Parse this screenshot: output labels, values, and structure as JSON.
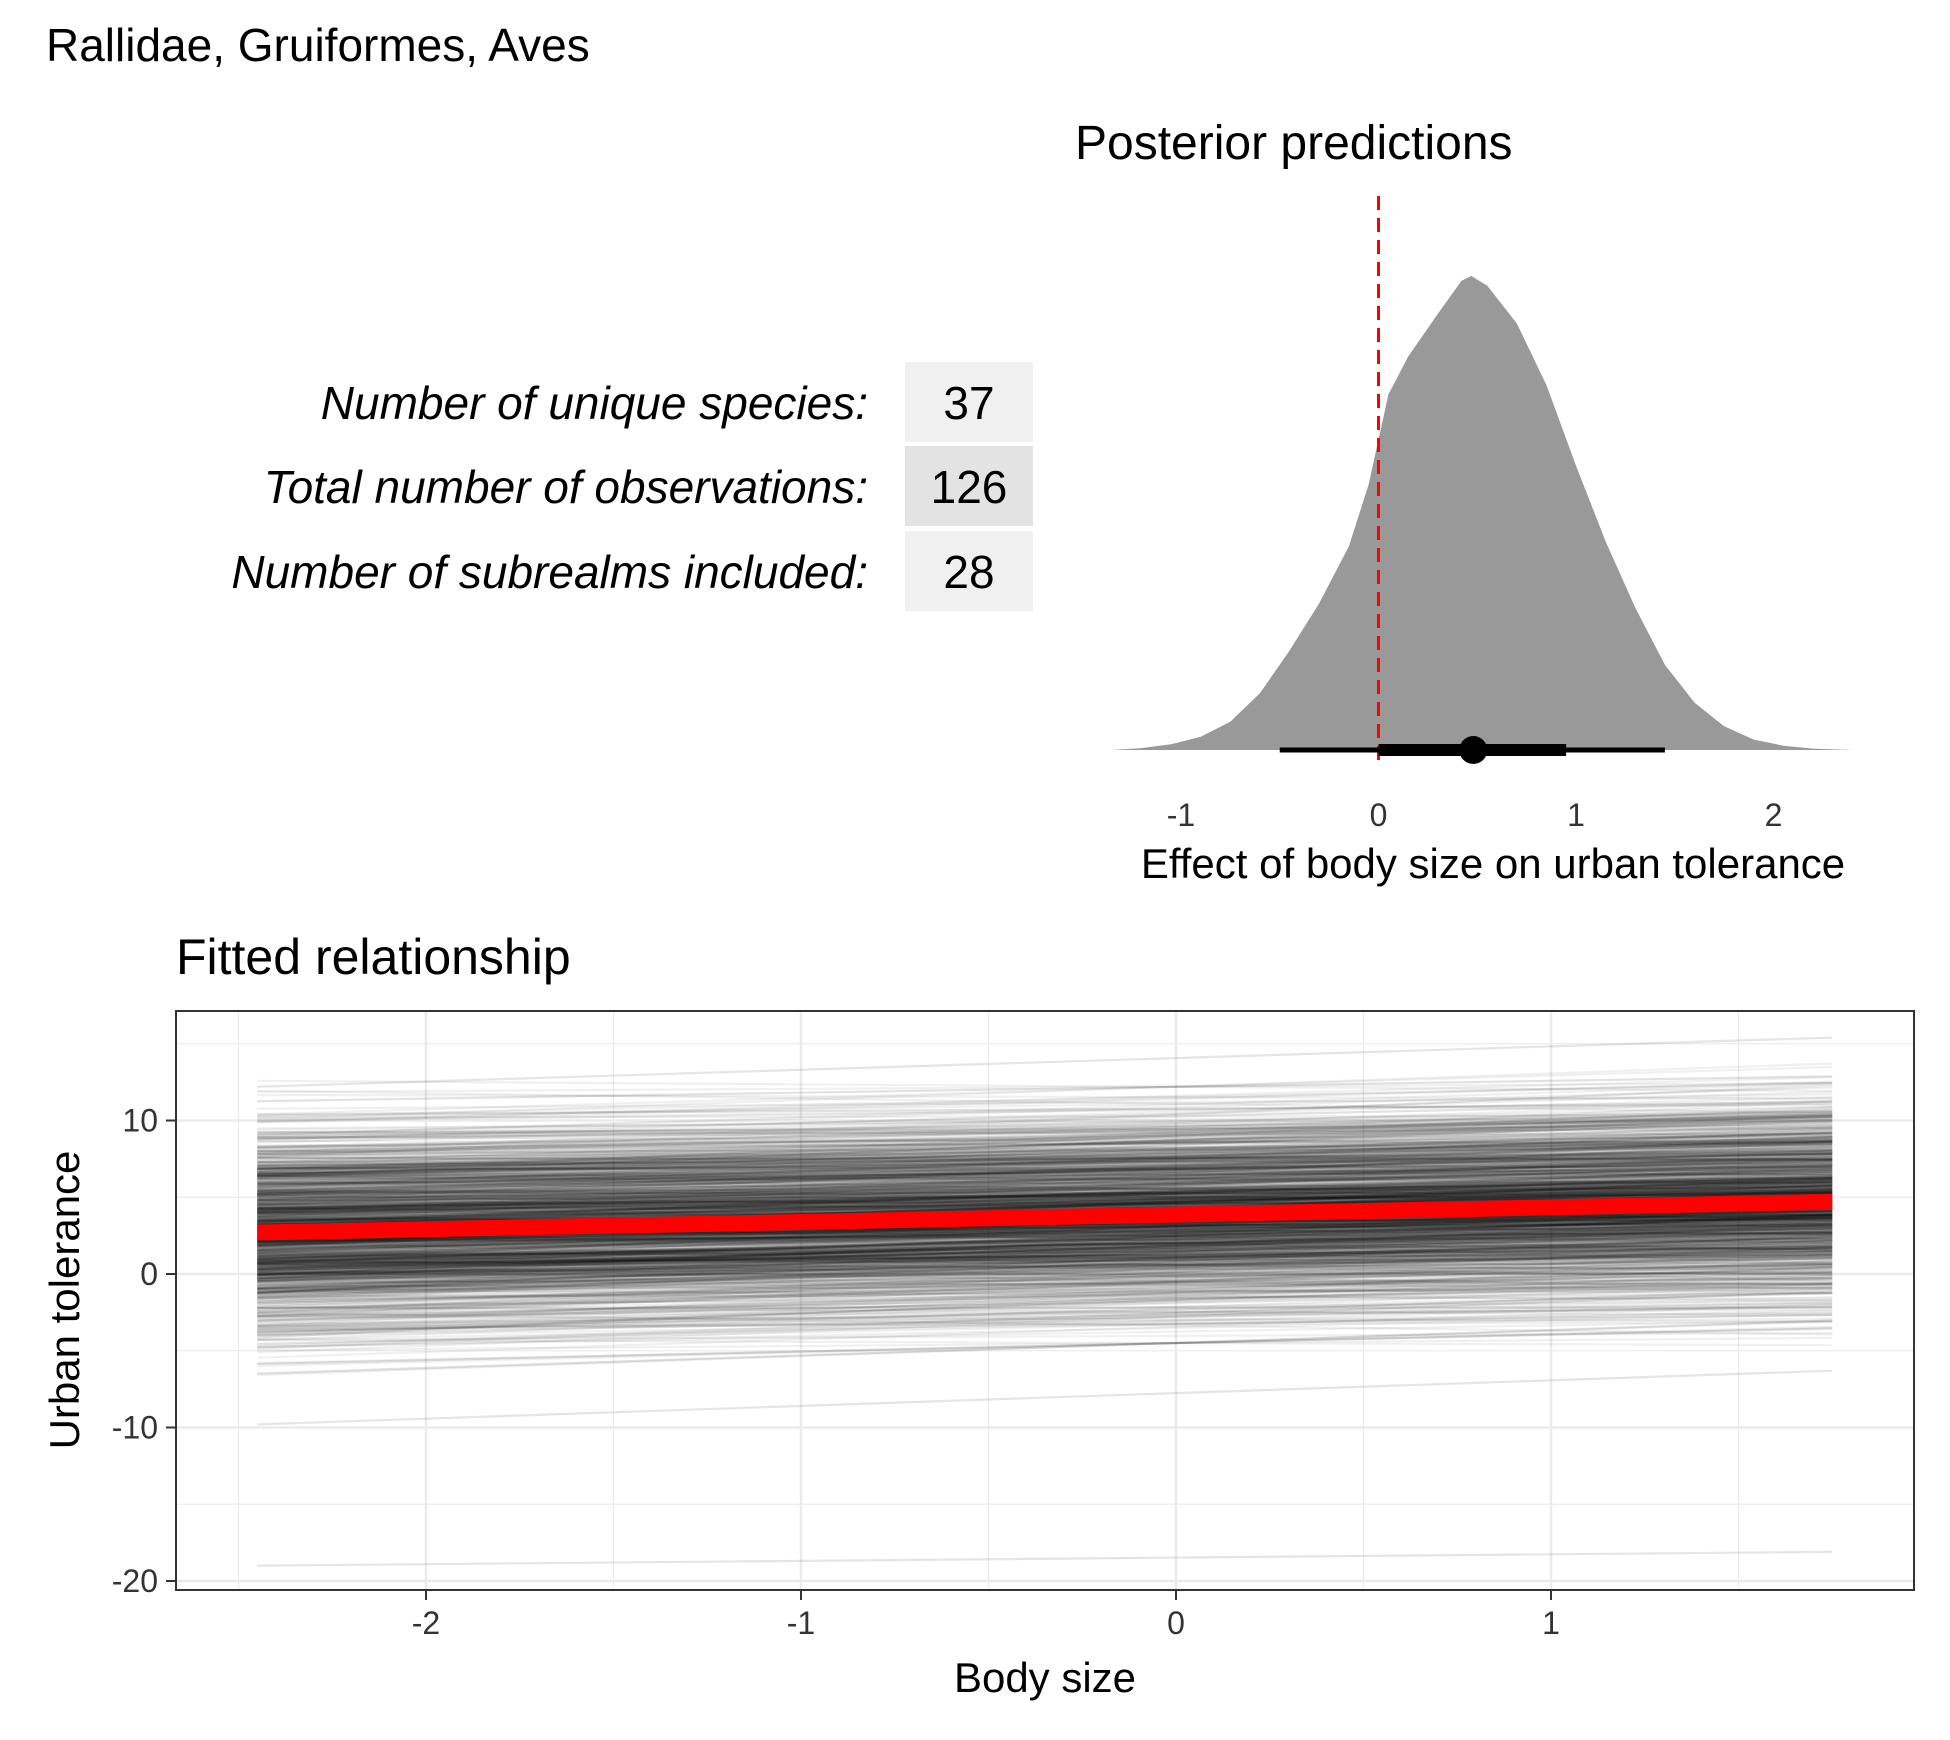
{
  "figure_title": "Rallidae, Gruiformes, Aves",
  "stats_table": {
    "rows": [
      {
        "label": "Number of unique species:",
        "value": "37"
      },
      {
        "label": "Total number of observations:",
        "value": "126"
      },
      {
        "label": "Number of subrealms included:",
        "value": "28"
      }
    ]
  },
  "colors": {
    "density_fill": "#999999",
    "reference_line": "#ff0000",
    "fitted_line": "#ff0000",
    "posterior_lines": "#000000",
    "grid": "#ebebeb",
    "table_cell_light": "#f0f0f0",
    "table_cell_dark": "#e3e3e3"
  },
  "chart_data": [
    {
      "type": "area",
      "subtype": "density-with-interval",
      "title": "Posterior predictions",
      "xlabel": "Effect of body size on urban tolerance",
      "ylabel": "",
      "xlim": [
        -1.35,
        2.4
      ],
      "x_ticks": [
        "-1",
        "0",
        "1",
        "2"
      ],
      "x_tick_values": [
        -1,
        0,
        1,
        2
      ],
      "reference_line": {
        "x": 0,
        "style": "dashed"
      },
      "density": {
        "x": [
          -1.35,
          -1.2,
          -1.05,
          -0.9,
          -0.75,
          -0.6,
          -0.45,
          -0.3,
          -0.15,
          -0.05,
          0.05,
          0.15,
          0.3,
          0.42,
          0.47,
          0.55,
          0.7,
          0.85,
          1.0,
          1.15,
          1.3,
          1.45,
          1.6,
          1.75,
          1.9,
          2.05,
          2.2,
          2.4
        ],
        "y": [
          0.0,
          0.004,
          0.012,
          0.028,
          0.06,
          0.12,
          0.21,
          0.31,
          0.43,
          0.56,
          0.75,
          0.83,
          0.92,
          0.99,
          1.0,
          0.98,
          0.9,
          0.77,
          0.6,
          0.44,
          0.3,
          0.18,
          0.1,
          0.05,
          0.022,
          0.009,
          0.003,
          0.0
        ]
      },
      "point_estimate": 0.48,
      "interval_inner": [
        0.0,
        0.95
      ],
      "interval_outer": [
        -0.5,
        1.45
      ],
      "grid": false
    },
    {
      "type": "line",
      "title": "Fitted relationship",
      "xlabel": "Body size",
      "ylabel": "Urban tolerance",
      "xlim": [
        -2.65,
        1.95
      ],
      "ylim": [
        -20.3,
        17.2
      ],
      "x_ticks": [
        "-2",
        "-1",
        "0",
        "1"
      ],
      "x_tick_values": [
        -2,
        -1,
        0,
        1
      ],
      "y_ticks": [
        "-20",
        "-10",
        "0",
        "10"
      ],
      "y_tick_values": [
        -20,
        -10,
        0,
        10
      ],
      "x_range": [
        -2.45,
        1.75
      ],
      "fitted_line": {
        "x": [
          -2.45,
          1.75
        ],
        "y": [
          2.7,
          4.7
        ]
      },
      "posterior_draws": {
        "count": 1200,
        "intercept_mean": 3.9,
        "intercept_sd": 3.2,
        "slope_mean": 0.48,
        "slope_sd": 0.32
      },
      "outlier_draws": [
        {
          "x": [
            -2.45,
            1.75
          ],
          "y": [
            -19.0,
            -18.1
          ]
        },
        {
          "x": [
            -2.45,
            1.75
          ],
          "y": [
            -9.8,
            -6.3
          ]
        },
        {
          "x": [
            -2.45,
            1.75
          ],
          "y": [
            12.2,
            15.4
          ]
        }
      ],
      "grid": true
    }
  ]
}
